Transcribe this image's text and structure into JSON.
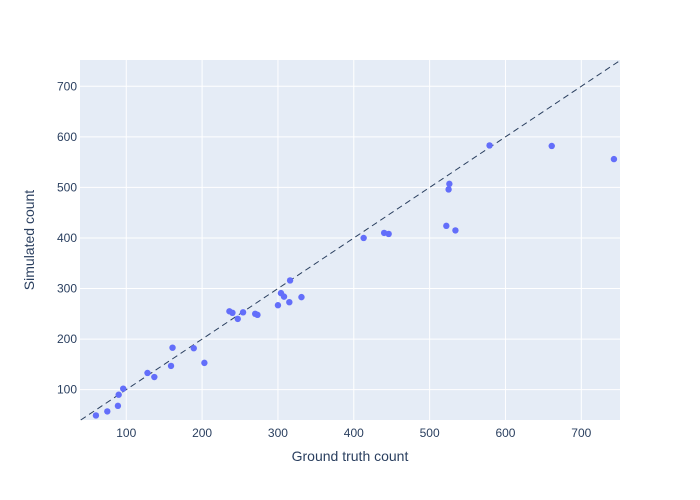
{
  "chart_data": {
    "type": "scatter",
    "title": "",
    "xlabel": "Ground truth count",
    "ylabel": "Simulated count",
    "xlim": [
      39,
      751
    ],
    "ylim": [
      40,
      752
    ],
    "xticks": [
      100,
      200,
      300,
      400,
      500,
      600,
      700
    ],
    "yticks": [
      100,
      200,
      300,
      400,
      500,
      600,
      700
    ],
    "grid": true,
    "legend": "none",
    "reference_line": {
      "type": "y=x",
      "style": "dashed",
      "color": "#2a3f5f"
    },
    "colors": {
      "plot_background": "#e5ecf6",
      "grid": "#ffffff",
      "marker": "#636efa",
      "text": "#2a3f5f"
    },
    "series": [
      {
        "x": [
          60,
          75,
          89,
          90,
          96,
          128,
          137,
          159,
          161,
          189,
          203,
          236,
          240,
          247,
          254,
          270,
          273,
          300,
          304,
          308,
          315,
          316,
          331,
          413,
          440,
          446,
          522,
          525,
          526,
          534,
          579,
          661,
          743
        ],
        "y": [
          49,
          57,
          68,
          90,
          102,
          133,
          125,
          147,
          183,
          182,
          153,
          255,
          252,
          240,
          253,
          250,
          248,
          267,
          291,
          284,
          273,
          316,
          283,
          400,
          410,
          408,
          424,
          496,
          507,
          415,
          583,
          582,
          556
        ]
      }
    ]
  }
}
